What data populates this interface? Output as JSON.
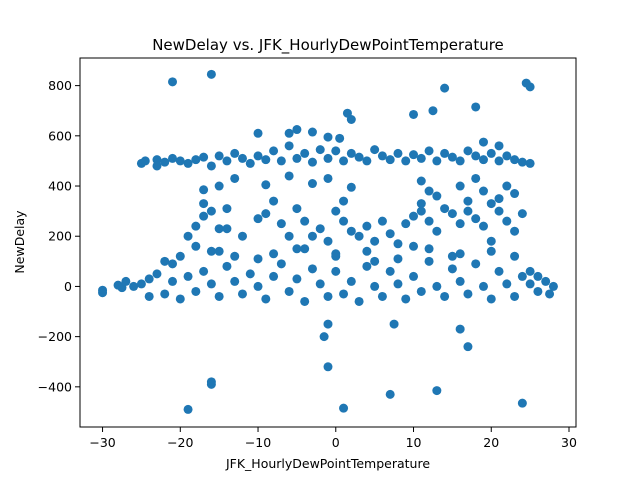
{
  "chart_data": {
    "type": "scatter",
    "title": "NewDelay vs. JFK_HourlyDewPointTemperature",
    "xlabel": "JFK_HourlyDewPointTemperature",
    "ylabel": "NewDelay",
    "xlim": [
      -32.9,
      30.9
    ],
    "ylim": [
      -560,
      910
    ],
    "xticks": [
      -30,
      -20,
      -10,
      0,
      10,
      20,
      30
    ],
    "xtick_labels": [
      "−30",
      "−20",
      "−10",
      "0",
      "10",
      "20",
      "30"
    ],
    "yticks": [
      -400,
      -200,
      0,
      200,
      400,
      600,
      800
    ],
    "ytick_labels": [
      "−400",
      "−200",
      "0",
      "200",
      "400",
      "600",
      "800"
    ],
    "grid": false,
    "legend": "none",
    "marker_color": "#1f77b4",
    "series": [
      {
        "values_note": "",
        "points": [
          [
            -30,
            -15
          ],
          [
            -30,
            -25
          ],
          [
            -28,
            5
          ],
          [
            -27.5,
            -5
          ],
          [
            -27,
            20
          ],
          [
            -26,
            0
          ],
          [
            -25,
            10
          ],
          [
            -24,
            30
          ],
          [
            -24,
            -40
          ],
          [
            -23,
            50
          ],
          [
            -22,
            100
          ],
          [
            -22,
            -30
          ],
          [
            -21,
            20
          ],
          [
            -21,
            90
          ],
          [
            -25,
            490
          ],
          [
            -24.5,
            500
          ],
          [
            -23,
            505
          ],
          [
            -23,
            480
          ],
          [
            -22,
            495
          ],
          [
            -21,
            510
          ],
          [
            -20,
            500
          ],
          [
            -19,
            490
          ],
          [
            -18,
            505
          ],
          [
            -17,
            515
          ],
          [
            -16,
            480
          ],
          [
            -15,
            520
          ],
          [
            -14,
            500
          ],
          [
            -13,
            530
          ],
          [
            -12,
            510
          ],
          [
            -11,
            490
          ],
          [
            -10,
            520
          ],
          [
            -9,
            505
          ],
          [
            -8,
            540
          ],
          [
            -7,
            500
          ],
          [
            -6,
            560
          ],
          [
            -5,
            510
          ],
          [
            -4,
            530
          ],
          [
            -3,
            495
          ],
          [
            -2,
            545
          ],
          [
            -1,
            510
          ],
          [
            0,
            540
          ],
          [
            1,
            500
          ],
          [
            2,
            530
          ],
          [
            3,
            515
          ],
          [
            4,
            500
          ],
          [
            5,
            545
          ],
          [
            6,
            520
          ],
          [
            7,
            505
          ],
          [
            8,
            530
          ],
          [
            9,
            500
          ],
          [
            10,
            525
          ],
          [
            11,
            510
          ],
          [
            12,
            540
          ],
          [
            13,
            500
          ],
          [
            14,
            530
          ],
          [
            15,
            515
          ],
          [
            16,
            500
          ],
          [
            17,
            540
          ],
          [
            18,
            520
          ],
          [
            19,
            505
          ],
          [
            20,
            530
          ],
          [
            21,
            500
          ],
          [
            22,
            520
          ],
          [
            23,
            505
          ],
          [
            24,
            495
          ],
          [
            25,
            490
          ],
          [
            -21,
            815
          ],
          [
            -16,
            845
          ],
          [
            1.5,
            690
          ],
          [
            2,
            665
          ],
          [
            10,
            685
          ],
          [
            12.5,
            700
          ],
          [
            14,
            790
          ],
          [
            18,
            715
          ],
          [
            24.5,
            810
          ],
          [
            25,
            795
          ],
          [
            -10,
            610
          ],
          [
            -6,
            610
          ],
          [
            -5,
            625
          ],
          [
            -3,
            615
          ],
          [
            -1,
            595
          ],
          [
            0.5,
            590
          ],
          [
            19,
            575
          ],
          [
            21,
            560
          ],
          [
            -17,
            385
          ],
          [
            -15,
            400
          ],
          [
            -13,
            430
          ],
          [
            -9,
            405
          ],
          [
            -6,
            440
          ],
          [
            -3,
            410
          ],
          [
            -1,
            430
          ],
          [
            2,
            395
          ],
          [
            11,
            420
          ],
          [
            12,
            380
          ],
          [
            16,
            400
          ],
          [
            18,
            430
          ],
          [
            22,
            400
          ],
          [
            23,
            370
          ],
          [
            -19,
            200
          ],
          [
            -18,
            240
          ],
          [
            -17,
            280
          ],
          [
            -16,
            300
          ],
          [
            -15,
            230
          ],
          [
            -14,
            310
          ],
          [
            -12,
            200
          ],
          [
            -10,
            270
          ],
          [
            -9,
            290
          ],
          [
            -8,
            340
          ],
          [
            -7,
            250
          ],
          [
            -6,
            200
          ],
          [
            -5,
            310
          ],
          [
            -4,
            260
          ],
          [
            -3,
            200
          ],
          [
            -2,
            230
          ],
          [
            -1,
            180
          ],
          [
            0,
            300
          ],
          [
            1,
            260
          ],
          [
            2,
            220
          ],
          [
            3,
            200
          ],
          [
            4,
            240
          ],
          [
            5,
            180
          ],
          [
            6,
            260
          ],
          [
            7,
            210
          ],
          [
            8,
            170
          ],
          [
            9,
            250
          ],
          [
            10,
            280
          ],
          [
            11,
            300
          ],
          [
            12,
            260
          ],
          [
            13,
            220
          ],
          [
            14,
            310
          ],
          [
            15,
            290
          ],
          [
            16,
            250
          ],
          [
            17,
            300
          ],
          [
            18,
            270
          ],
          [
            19,
            240
          ],
          [
            20,
            330
          ],
          [
            21,
            300
          ],
          [
            22,
            260
          ],
          [
            23,
            220
          ],
          [
            24,
            290
          ],
          [
            -18,
            160
          ],
          [
            -16,
            140
          ],
          [
            -13,
            120
          ],
          [
            -8,
            130
          ],
          [
            -4,
            150
          ],
          [
            0,
            120
          ],
          [
            4,
            140
          ],
          [
            8,
            110
          ],
          [
            12,
            150
          ],
          [
            16,
            130
          ],
          [
            20,
            140
          ],
          [
            23,
            120
          ],
          [
            -17,
            330
          ],
          [
            -14,
            230
          ],
          [
            1,
            340
          ],
          [
            11,
            330
          ],
          [
            13,
            360
          ],
          [
            17,
            340
          ],
          [
            19,
            380
          ],
          [
            21,
            350
          ],
          [
            -1,
            -150
          ],
          [
            -1.5,
            -200
          ],
          [
            -1,
            -320
          ],
          [
            7.5,
            -150
          ],
          [
            7,
            -430
          ],
          [
            13,
            -415
          ],
          [
            16,
            -170
          ],
          [
            17,
            -240
          ],
          [
            24,
            -465
          ],
          [
            -19,
            -490
          ],
          [
            -16,
            -380
          ],
          [
            -16,
            -390
          ],
          [
            1,
            -485
          ],
          [
            -20,
            -50
          ],
          [
            -19,
            40
          ],
          [
            -18,
            -20
          ],
          [
            -17,
            60
          ],
          [
            -16,
            10
          ],
          [
            -15,
            -40
          ],
          [
            -14,
            80
          ],
          [
            -13,
            20
          ],
          [
            -12,
            -30
          ],
          [
            -11,
            50
          ],
          [
            -10,
            0
          ],
          [
            -9,
            -50
          ],
          [
            -8,
            40
          ],
          [
            -7,
            90
          ],
          [
            -6,
            -20
          ],
          [
            -5,
            30
          ],
          [
            -4,
            -60
          ],
          [
            -3,
            70
          ],
          [
            -2,
            10
          ],
          [
            -1,
            -40
          ],
          [
            0,
            60
          ],
          [
            1,
            -30
          ],
          [
            2,
            20
          ],
          [
            3,
            -60
          ],
          [
            4,
            80
          ],
          [
            5,
            0
          ],
          [
            6,
            -40
          ],
          [
            7,
            60
          ],
          [
            8,
            10
          ],
          [
            9,
            -50
          ],
          [
            10,
            40
          ],
          [
            11,
            -20
          ],
          [
            12,
            100
          ],
          [
            13,
            0
          ],
          [
            14,
            -40
          ],
          [
            15,
            70
          ],
          [
            16,
            20
          ],
          [
            17,
            -30
          ],
          [
            18,
            90
          ],
          [
            19,
            0
          ],
          [
            20,
            -50
          ],
          [
            21,
            60
          ],
          [
            22,
            10
          ],
          [
            23,
            -40
          ],
          [
            24,
            40
          ],
          [
            25,
            10
          ],
          [
            26,
            -20
          ],
          [
            27,
            20
          ],
          [
            27.5,
            -30
          ],
          [
            28,
            0
          ],
          [
            -20,
            120
          ],
          [
            -15,
            140
          ],
          [
            -10,
            110
          ],
          [
            -5,
            150
          ],
          [
            0,
            130
          ],
          [
            5,
            100
          ],
          [
            10,
            160
          ],
          [
            15,
            120
          ],
          [
            20,
            180
          ],
          [
            25,
            60
          ],
          [
            26,
            40
          ]
        ]
      }
    ]
  }
}
